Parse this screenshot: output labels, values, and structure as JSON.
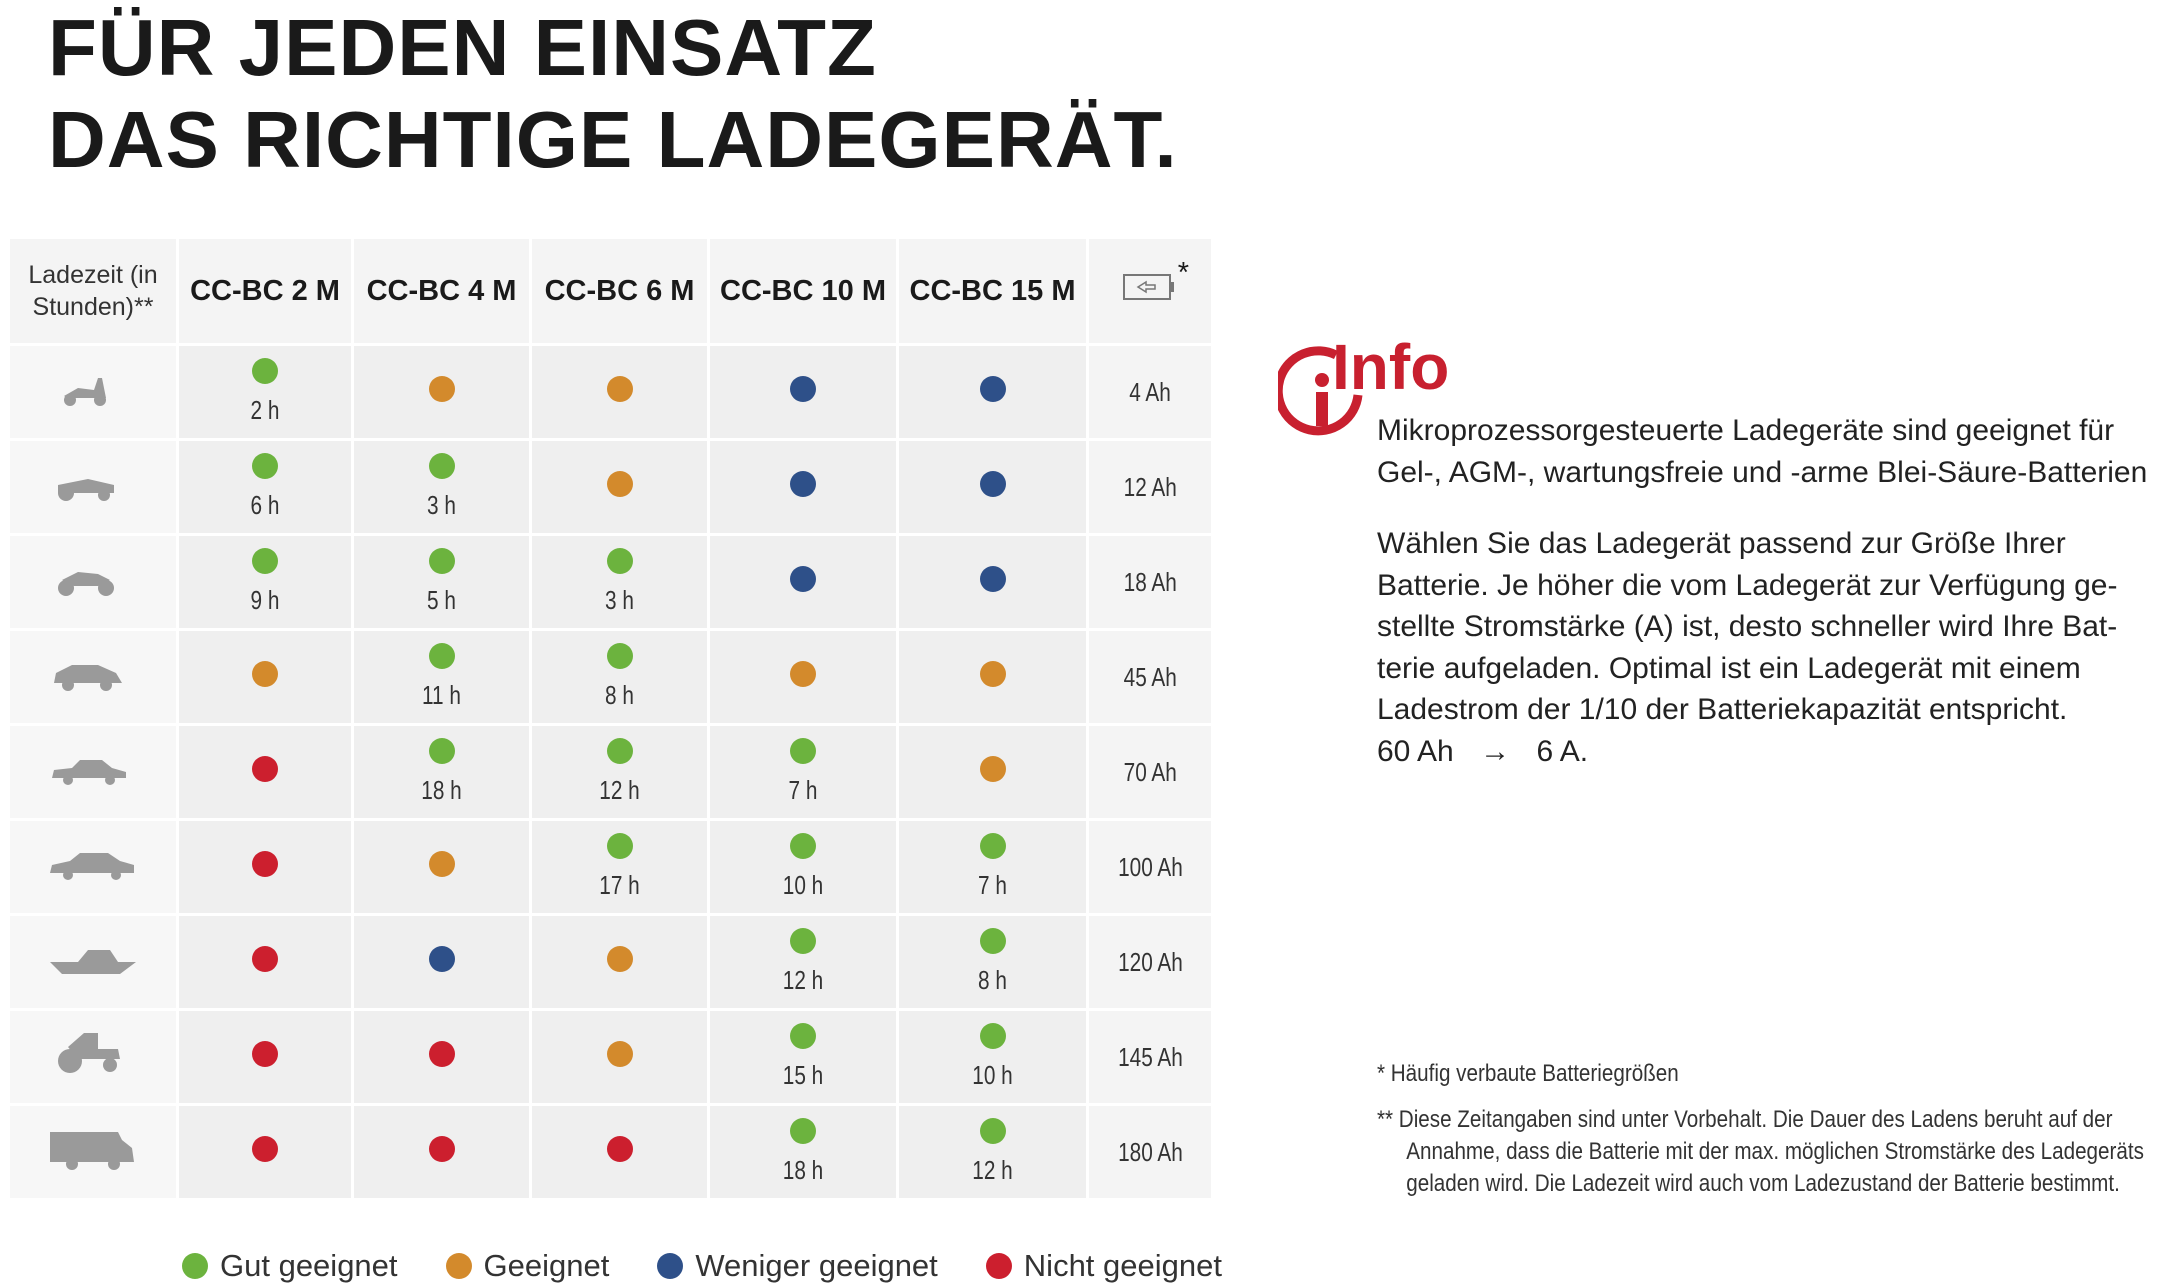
{
  "title": {
    "line1": "FÜR JEDEN EINSATZ",
    "line2": "DAS RICHTIGE LADEGERÄT."
  },
  "table": {
    "corner_label": "Ladezeit (in Stunden)**",
    "columns": [
      "CC-BC 2 M",
      "CC-BC 4 M",
      "CC-BC 6 M",
      "CC-BC 10 M",
      "CC-BC 15 M"
    ],
    "battery_header_icon": "battery-icon",
    "battery_header_mark": "*",
    "rows": [
      {
        "vehicle": "scooter",
        "cells": [
          [
            "g",
            "2 h"
          ],
          [
            "o",
            ""
          ],
          [
            "o",
            ""
          ],
          [
            "b",
            ""
          ],
          [
            "b",
            ""
          ]
        ],
        "capacity": "4 Ah"
      },
      {
        "vehicle": "lawn-tractor",
        "cells": [
          [
            "g",
            "6 h"
          ],
          [
            "g",
            "3 h"
          ],
          [
            "o",
            ""
          ],
          [
            "b",
            ""
          ],
          [
            "b",
            ""
          ]
        ],
        "capacity": "12 Ah"
      },
      {
        "vehicle": "motorcycle",
        "cells": [
          [
            "g",
            "9 h"
          ],
          [
            "g",
            "5 h"
          ],
          [
            "g",
            "3 h"
          ],
          [
            "b",
            ""
          ],
          [
            "b",
            ""
          ]
        ],
        "capacity": "18 Ah"
      },
      {
        "vehicle": "hatchback",
        "cells": [
          [
            "o",
            ""
          ],
          [
            "g",
            "11 h"
          ],
          [
            "g",
            "8 h"
          ],
          [
            "o",
            ""
          ],
          [
            "o",
            ""
          ]
        ],
        "capacity": "45 Ah"
      },
      {
        "vehicle": "sedan",
        "cells": [
          [
            "r",
            ""
          ],
          [
            "g",
            "18 h"
          ],
          [
            "g",
            "12 h"
          ],
          [
            "g",
            "7 h"
          ],
          [
            "o",
            ""
          ]
        ],
        "capacity": "70 Ah"
      },
      {
        "vehicle": "limousine",
        "cells": [
          [
            "r",
            ""
          ],
          [
            "o",
            ""
          ],
          [
            "g",
            "17 h"
          ],
          [
            "g",
            "10 h"
          ],
          [
            "g",
            "7 h"
          ]
        ],
        "capacity": "100 Ah"
      },
      {
        "vehicle": "boat",
        "cells": [
          [
            "r",
            ""
          ],
          [
            "b",
            ""
          ],
          [
            "o",
            ""
          ],
          [
            "g",
            "12 h"
          ],
          [
            "g",
            "8 h"
          ]
        ],
        "capacity": "120 Ah"
      },
      {
        "vehicle": "tractor",
        "cells": [
          [
            "r",
            ""
          ],
          [
            "r",
            ""
          ],
          [
            "o",
            ""
          ],
          [
            "g",
            "15 h"
          ],
          [
            "g",
            "10 h"
          ]
        ],
        "capacity": "145 Ah"
      },
      {
        "vehicle": "camper",
        "cells": [
          [
            "r",
            ""
          ],
          [
            "r",
            ""
          ],
          [
            "r",
            ""
          ],
          [
            "g",
            "18 h"
          ],
          [
            "g",
            "12 h"
          ]
        ],
        "capacity": "180 Ah"
      }
    ]
  },
  "colors": {
    "g": "#6cb33e",
    "o": "#d38a2c",
    "b": "#2e5089",
    "r": "#cc1f2e",
    "info": "#c8202f"
  },
  "legend": [
    {
      "c": "g",
      "label": "Gut geeignet"
    },
    {
      "c": "o",
      "label": "Geeignet"
    },
    {
      "c": "b",
      "label": "Weniger geeignet"
    },
    {
      "c": "r",
      "label": "Nicht geeignet"
    }
  ],
  "info": {
    "title": "Info",
    "p1": "Mikroprozessorgesteuerte Ladegeräte sind geeignet für Gel-, AGM-, wartungsfreie und -arme Blei-Säure-Batterien",
    "p2": "Wählen Sie das Ladegerät passend zur Größe Ihrer Batterie. Je höher die vom Ladegerät zur Verfügung ge­stellte Stromstärke (A) ist, desto schneller wird Ihre Bat­terie aufgeladen. Optimal ist ein Ladegerät mit einem Ladestrom der 1/10 der Batteriekapazität entspricht.",
    "example_from": "60 Ah",
    "example_arrow": "→",
    "example_to": "6 A."
  },
  "footnotes": {
    "f1": "* Häufig verbaute Batteriegrößen",
    "f2": "** Diese Zeitangaben sind unter Vorbehalt. Die Dauer des Ladens beruht auf der",
    "f2b": "Annahme, dass die Batterie mit der max. möglichen Stromstärke des Ladegeräts",
    "f2c": "geladen wird. Die Ladezeit wird auch vom Ladezustand der Batterie bestimmt."
  }
}
